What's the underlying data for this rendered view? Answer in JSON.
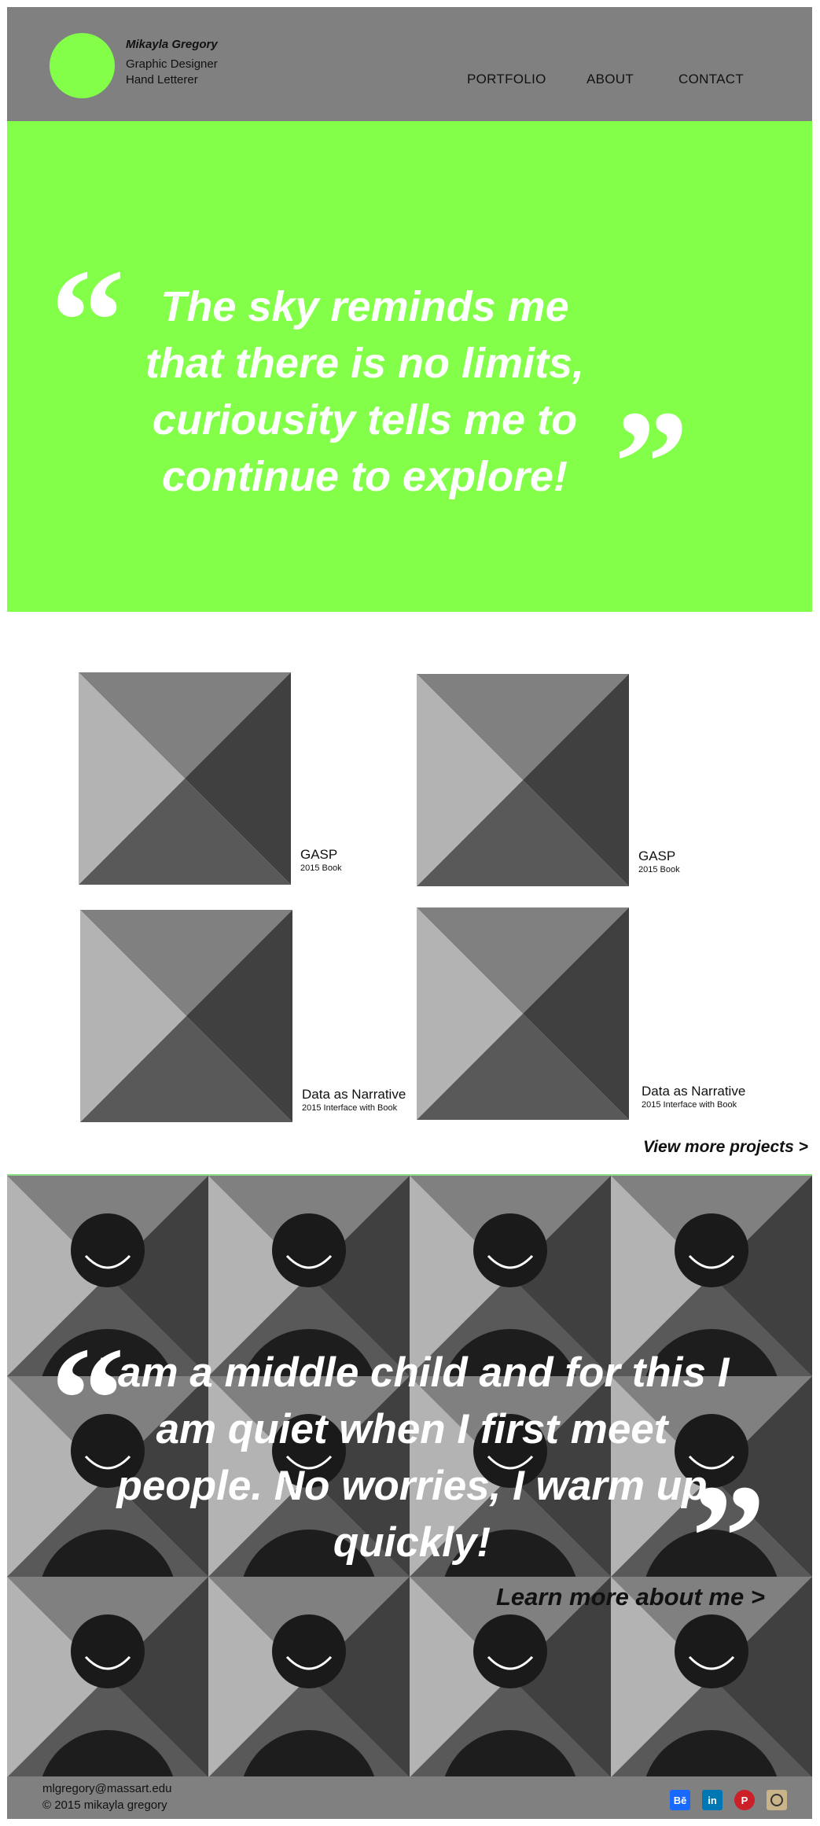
{
  "header": {
    "name": "Mikayla Gregory",
    "role_1": "Graphic Designer",
    "role_2": "Hand Letterer",
    "nav": [
      "PORTFOLIO",
      "ABOUT",
      "CONTACT"
    ]
  },
  "hero": {
    "quote": "The sky reminds me that there is no limits, curiousity tells me to continue to explore!"
  },
  "projects": [
    {
      "title": "GASP",
      "subtitle": "2015 Book"
    },
    {
      "title": "GASP",
      "subtitle": "2015 Book"
    },
    {
      "title": "Data as Narrative",
      "subtitle": "2015 Interface with Book"
    },
    {
      "title": "Data as Narrative",
      "subtitle": "2015 Interface with Book"
    }
  ],
  "view_more": "View more projects >",
  "about": {
    "quote": "I am a middle child and for this I am quiet when I first meet people. No worries, I warm up quickly!",
    "link": "Learn more about me >"
  },
  "footer": {
    "email": "mlgregory@massart.edu",
    "copyright": "© 2015 mikayla gregory",
    "social": [
      "behance-icon",
      "linkedin-icon",
      "pinterest-icon",
      "instagram-icon"
    ]
  },
  "colors": {
    "accent_green": "#83ff4a",
    "header_gray": "#808080",
    "behance_blue": "#1769ff",
    "linkedin_blue": "#0077b5",
    "pinterest_red": "#cb2027",
    "instagram_tan": "#c9b48a"
  }
}
